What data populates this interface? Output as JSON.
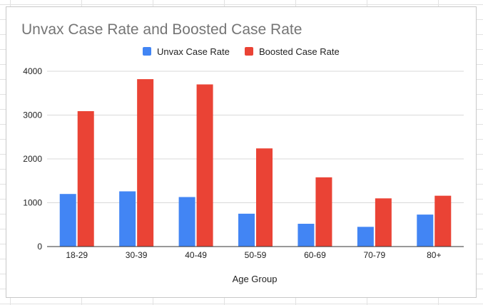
{
  "chart_data": {
    "type": "bar",
    "title": "Unvax Case Rate and Boosted Case Rate",
    "xlabel": "Age Group",
    "ylabel": "",
    "categories": [
      "18-29",
      "30-39",
      "40-49",
      "50-59",
      "60-69",
      "70-79",
      "80+"
    ],
    "series": [
      {
        "name": "Unvax Case Rate",
        "color": "#4285f4",
        "values": [
          1200,
          1260,
          1130,
          750,
          520,
          450,
          730
        ]
      },
      {
        "name": "Boosted Case Rate",
        "color": "#ea4335",
        "values": [
          3090,
          3820,
          3700,
          2240,
          1580,
          1100,
          1160
        ]
      }
    ],
    "ylim": [
      0,
      4000
    ],
    "yticks": [
      "0",
      "1000",
      "2000",
      "3000",
      "4000"
    ],
    "grid": true,
    "legend_position": "top"
  }
}
